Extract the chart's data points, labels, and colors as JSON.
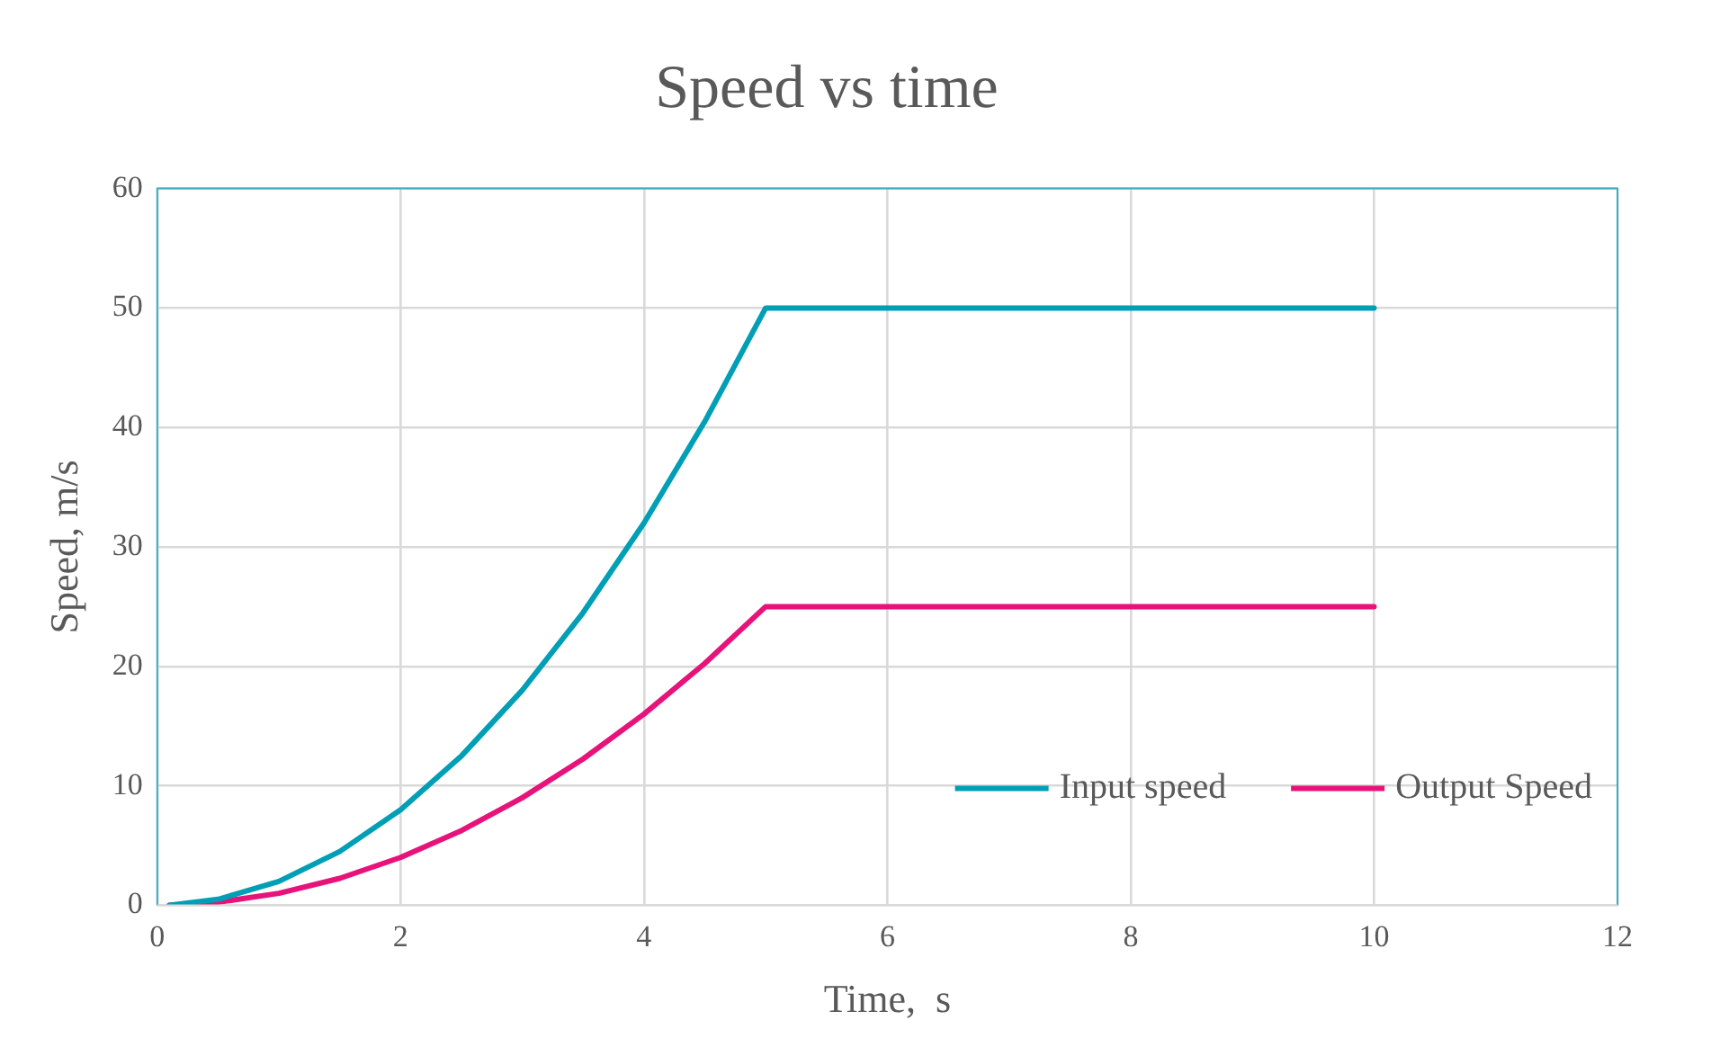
{
  "chart_data": {
    "type": "line",
    "title": "Speed vs time",
    "xlabel": "Time,  s",
    "ylabel": "Speed, m/s",
    "x": [
      0.1,
      0.5,
      1,
      1.5,
      2,
      2.5,
      3,
      3.5,
      4,
      4.5,
      5,
      10
    ],
    "series": [
      {
        "name": "Input speed",
        "color": "#009fb5",
        "values": [
          0,
          0.5,
          2,
          4.5,
          8,
          12.5,
          18,
          24.5,
          32,
          40.5,
          50,
          50
        ]
      },
      {
        "name": "Output Speed",
        "color": "#e8137a",
        "values": [
          0,
          0.25,
          1,
          2.25,
          4,
          6.25,
          9,
          12.25,
          16,
          20.25,
          25,
          25
        ]
      }
    ],
    "xlim": [
      0,
      12
    ],
    "xticks": [
      0,
      2,
      4,
      6,
      8,
      10,
      12
    ],
    "ylim": [
      0,
      60
    ],
    "yticks": [
      0,
      10,
      20,
      30,
      40,
      50,
      60
    ],
    "grid": true,
    "legend": "bottom right",
    "marker": "none",
    "line_style": "solid"
  }
}
